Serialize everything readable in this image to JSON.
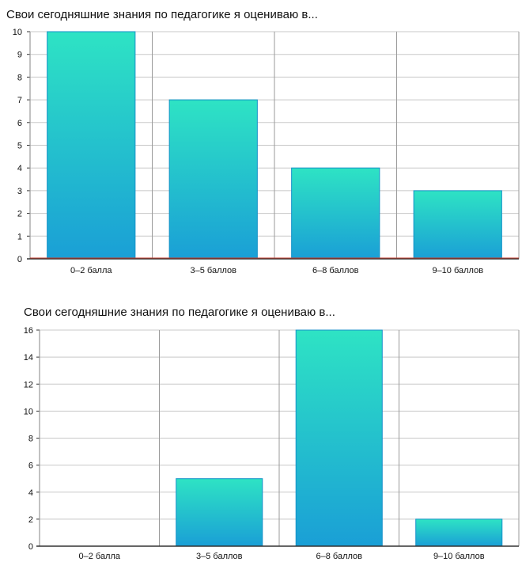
{
  "chart_data": [
    {
      "type": "bar",
      "title": "Свои сегодняшние знания по педагогике я оцениваю в...",
      "categories": [
        "0–2 балла",
        "3–5 баллов",
        "6–8 баллов",
        "9–10 баллов"
      ],
      "values": [
        10,
        7,
        4,
        3
      ],
      "ylim": [
        0,
        10
      ],
      "yticks": [
        0,
        1,
        2,
        3,
        4,
        5,
        6,
        7,
        8,
        9,
        10
      ],
      "grid": true,
      "xlabel": "",
      "ylabel": ""
    },
    {
      "type": "bar",
      "title": "Свои сегодняшние знания по педагогике я оцениваю в...",
      "categories": [
        "0–2 балла",
        "3–5 баллов",
        "6–8 баллов",
        "9–10 баллов"
      ],
      "values": [
        0,
        5,
        16,
        2
      ],
      "ylim": [
        0,
        16
      ],
      "yticks": [
        0,
        2,
        4,
        6,
        8,
        10,
        12,
        14,
        16
      ],
      "grid": true,
      "xlabel": "",
      "ylabel": ""
    }
  ],
  "colors": {
    "bar_top": "#2ee3c4",
    "bar_bottom": "#1a9fd6",
    "bar_edge": "#1592c8",
    "grid": "#9a9a9a",
    "axis": "#333333",
    "baseline_accent": "#c0392b"
  }
}
